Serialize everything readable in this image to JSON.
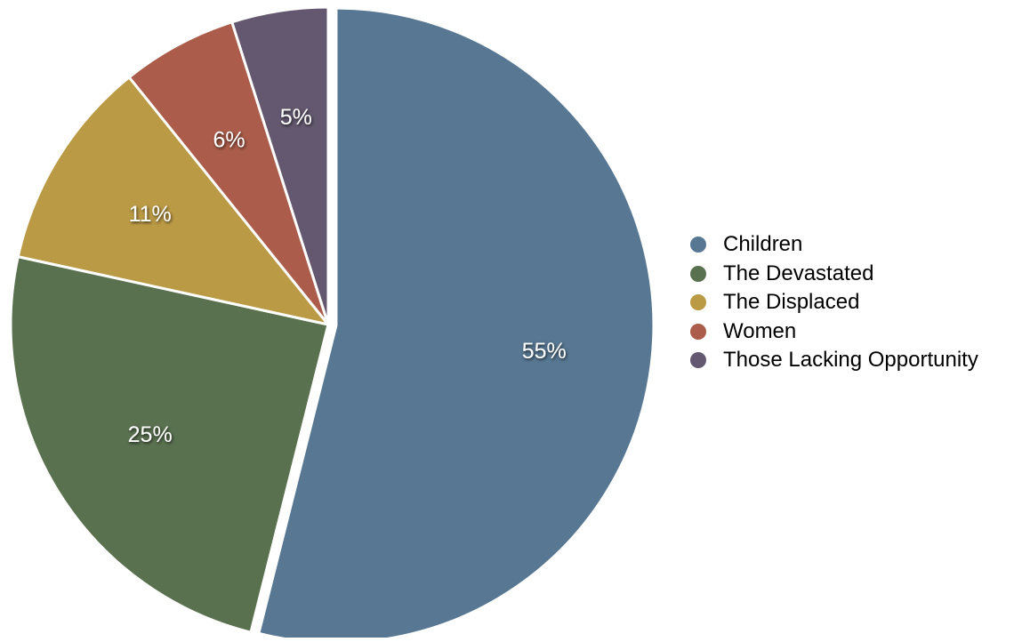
{
  "chart_data": {
    "type": "pie",
    "title": "",
    "categories": [
      "Children",
      "The Devastated",
      "The Displaced",
      "Women",
      "Those Lacking Opportunity"
    ],
    "values": [
      55,
      25,
      11,
      6,
      5
    ],
    "labels": [
      "55%",
      "25%",
      "11%",
      "6%",
      "5%"
    ],
    "colors": [
      "#577792",
      "#5a7150",
      "#bb9a45",
      "#ac5c4a",
      "#63586f"
    ],
    "exploded": [
      "Children"
    ],
    "start": "12 o'clock, clockwise",
    "legend_position": "right"
  }
}
